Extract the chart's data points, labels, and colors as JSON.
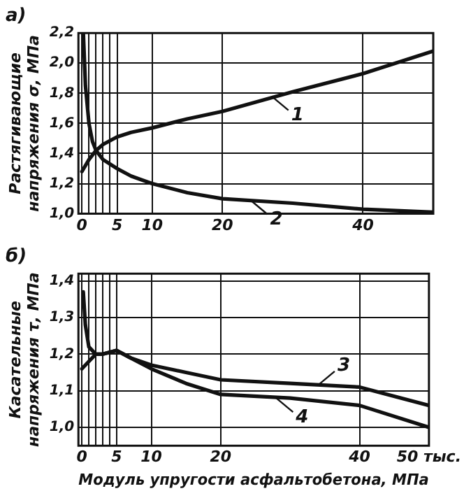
{
  "chart_data": [
    {
      "type": "line",
      "title": "а)",
      "ylabel": "Растягивающие\nнапряжения σ, МПа",
      "series": [
        {
          "color": "#111111",
          "x": [
            0,
            1,
            2,
            3,
            5,
            7,
            10,
            15,
            20,
            30,
            40,
            50
          ],
          "values": [
            1.28,
            1.36,
            1.42,
            1.46,
            1.51,
            1.54,
            1.57,
            1.63,
            1.68,
            1.81,
            1.93,
            2.08
          ]
        },
        {
          "color": "#111111",
          "x": [
            0.2,
            0.5,
            1,
            1.5,
            2,
            3,
            5,
            7,
            10,
            15,
            20,
            30,
            40,
            50
          ],
          "values": [
            2.2,
            1.85,
            1.6,
            1.48,
            1.42,
            1.36,
            1.3,
            1.25,
            1.2,
            1.14,
            1.1,
            1.07,
            1.03,
            1.01
          ]
        }
      ],
      "xlim": [
        -0.5,
        50
      ],
      "xticks": [
        0,
        {
          "value": 1,
          "label": null
        },
        {
          "value": 2,
          "label": null
        },
        {
          "value": 3,
          "label": null
        },
        {
          "value": 4,
          "label": null
        },
        5,
        10,
        20,
        40
      ],
      "ylim": [
        1.0,
        2.2
      ],
      "yticks": [
        {
          "value": 1.0,
          "label": "1,0"
        },
        {
          "value": 1.2,
          "label": "1,2"
        },
        {
          "value": 1.4,
          "label": "1,4"
        },
        {
          "value": 1.6,
          "label": "1,6"
        },
        {
          "value": 1.8,
          "label": "1,8"
        },
        {
          "value": 2.0,
          "label": "2,0"
        },
        {
          "value": 2.2,
          "label": "2,2"
        }
      ],
      "annotations": [
        {
          "text": "1",
          "x": 27,
          "y": 1.78
        },
        {
          "text": "2",
          "x": 24,
          "y": 1.09
        }
      ],
      "grid": true,
      "legend": false,
      "marker": "none",
      "line_style": "solid"
    },
    {
      "type": "line",
      "title": "б)",
      "xlabel": "Модуль упругости асфальтобетона, МПа",
      "ylabel": "Касательные\nнапряжения τ, МПа",
      "series": [
        {
          "color": "#111111",
          "x": [
            0,
            1,
            2,
            3,
            5,
            7,
            10,
            15,
            20,
            30,
            40,
            50
          ],
          "values": [
            1.16,
            1.18,
            1.2,
            1.2,
            1.21,
            1.19,
            1.17,
            1.15,
            1.13,
            1.12,
            1.11,
            1.06
          ]
        },
        {
          "color": "#111111",
          "x": [
            0.2,
            0.5,
            1,
            2,
            3,
            5,
            7,
            10,
            15,
            20,
            30,
            40,
            50
          ],
          "values": [
            1.37,
            1.28,
            1.22,
            1.2,
            1.2,
            1.21,
            1.19,
            1.16,
            1.12,
            1.09,
            1.08,
            1.06,
            1.0
          ]
        }
      ],
      "xlim": [
        -0.5,
        50
      ],
      "xticks": [
        0,
        {
          "value": 1,
          "label": null
        },
        {
          "value": 2,
          "label": null
        },
        {
          "value": 3,
          "label": null
        },
        {
          "value": 4,
          "label": null
        },
        5,
        10,
        20,
        40,
        {
          "value": 50,
          "label": "50 тыс."
        }
      ],
      "ylim": [
        0.95,
        1.42
      ],
      "yticks": [
        {
          "value": 1.0,
          "label": "1,0"
        },
        {
          "value": 1.1,
          "label": "1,1"
        },
        {
          "value": 1.2,
          "label": "1,2"
        },
        {
          "value": 1.3,
          "label": "1,3"
        },
        {
          "value": 1.4,
          "label": "1,4"
        }
      ],
      "annotations": [
        {
          "text": "3",
          "x": 34,
          "y": 1.115
        },
        {
          "text": "4",
          "x": 28,
          "y": 1.08
        }
      ],
      "grid": true,
      "legend": false,
      "marker": "none",
      "line_style": "solid"
    }
  ]
}
